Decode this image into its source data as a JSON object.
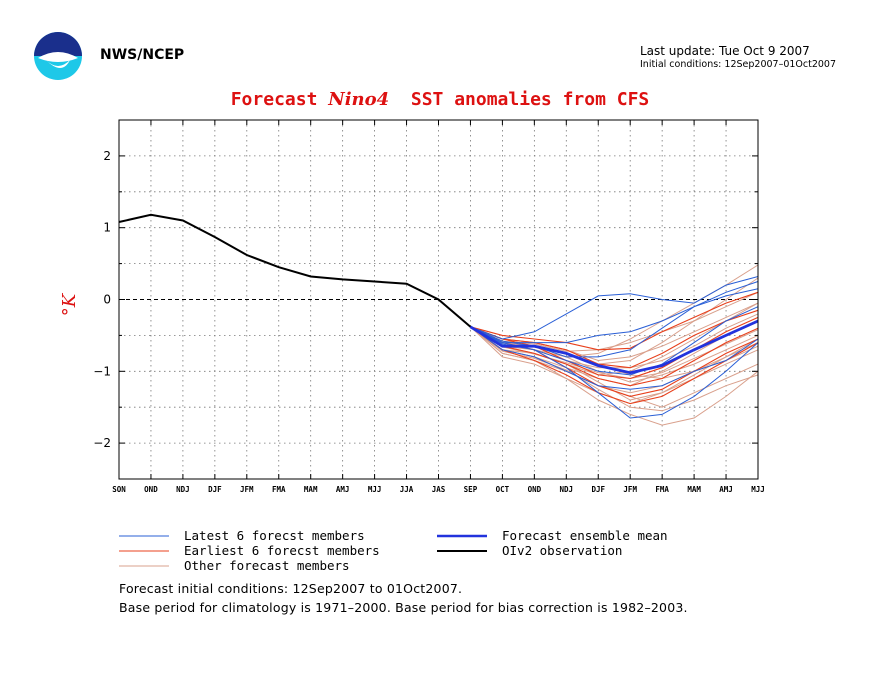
{
  "header": {
    "org": "NWS/NCEP",
    "last_update": "Last update: Tue Oct 9 2007",
    "initial_conditions": "Initial conditions: 12Sep2007–01Oct2007"
  },
  "title": {
    "prefix": "Forecast ",
    "region": "Nino4",
    "suffix": "  SST anomalies from CFS"
  },
  "footer": {
    "line1": "Forecast initial conditions: 12Sep2007 to 01Oct2007.",
    "line2": "Base period for climatology is 1971–2000. Base period for bias correction is 1982–2003."
  },
  "colors": {
    "latest": "#2a5fd6",
    "earliest": "#e8401c",
    "other": "#d9a08c",
    "mean": "#2233dd",
    "obs": "#000000",
    "title": "#dd1111"
  },
  "icons": {
    "logo": "noaa-logo-icon"
  },
  "chart_data": {
    "type": "line",
    "ylabel": "°K",
    "ylim": [
      -2.5,
      2.5
    ],
    "yticks": [
      2,
      1,
      0,
      -1,
      -2
    ],
    "categories": [
      "SON",
      "OND",
      "NDJ",
      "DJF",
      "JFM",
      "FMA",
      "MAM",
      "AMJ",
      "MJJ",
      "JJA",
      "JAS",
      "SEP",
      "OCT",
      "OND",
      "NDJ",
      "DJF",
      "JFM",
      "FMA",
      "MAM",
      "AMJ",
      "MJJ"
    ],
    "grid": true,
    "legend": [
      {
        "label": "Latest 6 forecst members",
        "color": "#2a5fd6",
        "width": 1,
        "col": 0,
        "row": 0
      },
      {
        "label": "Earliest 6 forecst members",
        "color": "#e8401c",
        "width": 1,
        "col": 0,
        "row": 1
      },
      {
        "label": "Other forecast members",
        "color": "#d9a08c",
        "width": 1,
        "col": 0,
        "row": 2
      },
      {
        "label": "Forecast ensemble mean",
        "color": "#2233dd",
        "width": 2.5,
        "col": 1,
        "row": 0
      },
      {
        "label": "OIv2 observation",
        "color": "#000000",
        "width": 2,
        "col": 1,
        "row": 1
      }
    ],
    "observation": {
      "x_start": 0,
      "values": [
        1.08,
        1.18,
        1.1,
        0.87,
        0.62,
        0.45,
        0.32,
        0.28,
        0.25,
        0.22,
        0.0,
        -0.38
      ]
    },
    "ensemble_mean": {
      "x_start": 11,
      "values": [
        -0.38,
        -0.65,
        -0.65,
        -0.75,
        -0.92,
        -1.02,
        -0.92,
        -0.7,
        -0.5,
        -0.3
      ]
    },
    "members": {
      "x_start": 11,
      "latest": [
        [
          -0.38,
          -0.55,
          -0.45,
          -0.2,
          0.05,
          0.08,
          0.0,
          -0.05,
          0.2,
          0.32
        ],
        [
          -0.38,
          -0.6,
          -0.6,
          -0.6,
          -0.5,
          -0.45,
          -0.3,
          -0.1,
          0.1,
          0.25
        ],
        [
          -0.38,
          -0.62,
          -0.7,
          -0.95,
          -1.3,
          -1.65,
          -1.6,
          -1.35,
          -1.0,
          -0.6
        ],
        [
          -0.38,
          -0.58,
          -0.65,
          -0.8,
          -0.8,
          -0.7,
          -0.4,
          -0.1,
          0.05,
          0.15
        ],
        [
          -0.38,
          -0.7,
          -0.8,
          -1.0,
          -1.2,
          -1.25,
          -1.2,
          -1.0,
          -0.85,
          -0.55
        ],
        [
          -0.38,
          -0.6,
          -0.7,
          -0.85,
          -1.0,
          -1.05,
          -0.9,
          -0.6,
          -0.3,
          -0.1
        ]
      ],
      "earliest": [
        [
          -0.38,
          -0.5,
          -0.55,
          -0.6,
          -0.7,
          -0.68,
          -0.45,
          -0.25,
          -0.05,
          0.1
        ],
        [
          -0.38,
          -0.55,
          -0.6,
          -0.7,
          -0.9,
          -0.95,
          -0.75,
          -0.5,
          -0.3,
          -0.15
        ],
        [
          -0.38,
          -0.65,
          -0.75,
          -0.9,
          -1.1,
          -1.2,
          -1.1,
          -0.85,
          -0.6,
          -0.4
        ],
        [
          -0.38,
          -0.6,
          -0.7,
          -0.95,
          -1.2,
          -1.35,
          -1.25,
          -1.0,
          -0.75,
          -0.55
        ],
        [
          -0.38,
          -0.55,
          -0.65,
          -0.85,
          -1.05,
          -1.1,
          -0.95,
          -0.7,
          -0.45,
          -0.25
        ],
        [
          -0.38,
          -0.7,
          -0.85,
          -1.05,
          -1.3,
          -1.45,
          -1.35,
          -1.1,
          -0.85,
          -0.6
        ]
      ],
      "other": [
        [
          -0.38,
          -0.7,
          -0.8,
          -1.0,
          -1.2,
          -1.35,
          -1.5,
          -1.3,
          -1.1,
          -0.9
        ],
        [
          -0.38,
          -0.75,
          -0.85,
          -1.1,
          -1.4,
          -1.6,
          -1.75,
          -1.65,
          -1.35,
          -1.0
        ],
        [
          -0.38,
          -0.6,
          -0.7,
          -0.8,
          -0.75,
          -0.55,
          -0.3,
          -0.05,
          0.2,
          0.48
        ],
        [
          -0.38,
          -0.55,
          -0.6,
          -0.7,
          -0.9,
          -0.85,
          -0.6,
          -0.3,
          0.0,
          0.3
        ],
        [
          -0.38,
          -0.65,
          -0.75,
          -0.9,
          -1.05,
          -1.0,
          -0.8,
          -0.55,
          -0.3,
          -0.05
        ],
        [
          -0.38,
          -0.8,
          -0.9,
          -1.1,
          -1.3,
          -1.45,
          -1.3,
          -1.1,
          -0.9,
          -0.7
        ],
        [
          -0.38,
          -0.6,
          -0.65,
          -0.8,
          -1.0,
          -1.15,
          -1.05,
          -0.9,
          -0.7,
          -0.5
        ],
        [
          -0.38,
          -0.7,
          -0.8,
          -0.95,
          -1.1,
          -1.2,
          -1.0,
          -0.75,
          -0.5,
          -0.3
        ],
        [
          -0.38,
          -0.55,
          -0.6,
          -0.7,
          -0.85,
          -0.8,
          -0.65,
          -0.45,
          -0.25,
          -0.05
        ],
        [
          -0.38,
          -0.75,
          -0.85,
          -1.0,
          -1.2,
          -1.3,
          -1.2,
          -1.0,
          -0.8,
          -0.6
        ],
        [
          -0.38,
          -0.65,
          -0.7,
          -0.85,
          -0.95,
          -0.95,
          -0.85,
          -0.65,
          -0.4,
          -0.2
        ],
        [
          -0.38,
          -0.7,
          -0.75,
          -0.9,
          -1.15,
          -1.4,
          -1.3,
          -1.05,
          -0.8,
          -0.55
        ],
        [
          -0.38,
          -0.6,
          -0.65,
          -0.75,
          -0.9,
          -1.05,
          -1.1,
          -1.0,
          -0.85,
          -0.65
        ],
        [
          -0.38,
          -0.72,
          -0.82,
          -0.98,
          -1.25,
          -1.5,
          -1.55,
          -1.4,
          -1.2,
          -1.05
        ],
        [
          -0.38,
          -0.58,
          -0.62,
          -0.72,
          -0.7,
          -0.6,
          -0.45,
          -0.3,
          -0.1,
          0.1
        ],
        [
          -0.38,
          -0.66,
          -0.76,
          -0.88,
          -1.02,
          -1.1,
          -1.02,
          -0.82,
          -0.62,
          -0.42
        ]
      ]
    }
  }
}
